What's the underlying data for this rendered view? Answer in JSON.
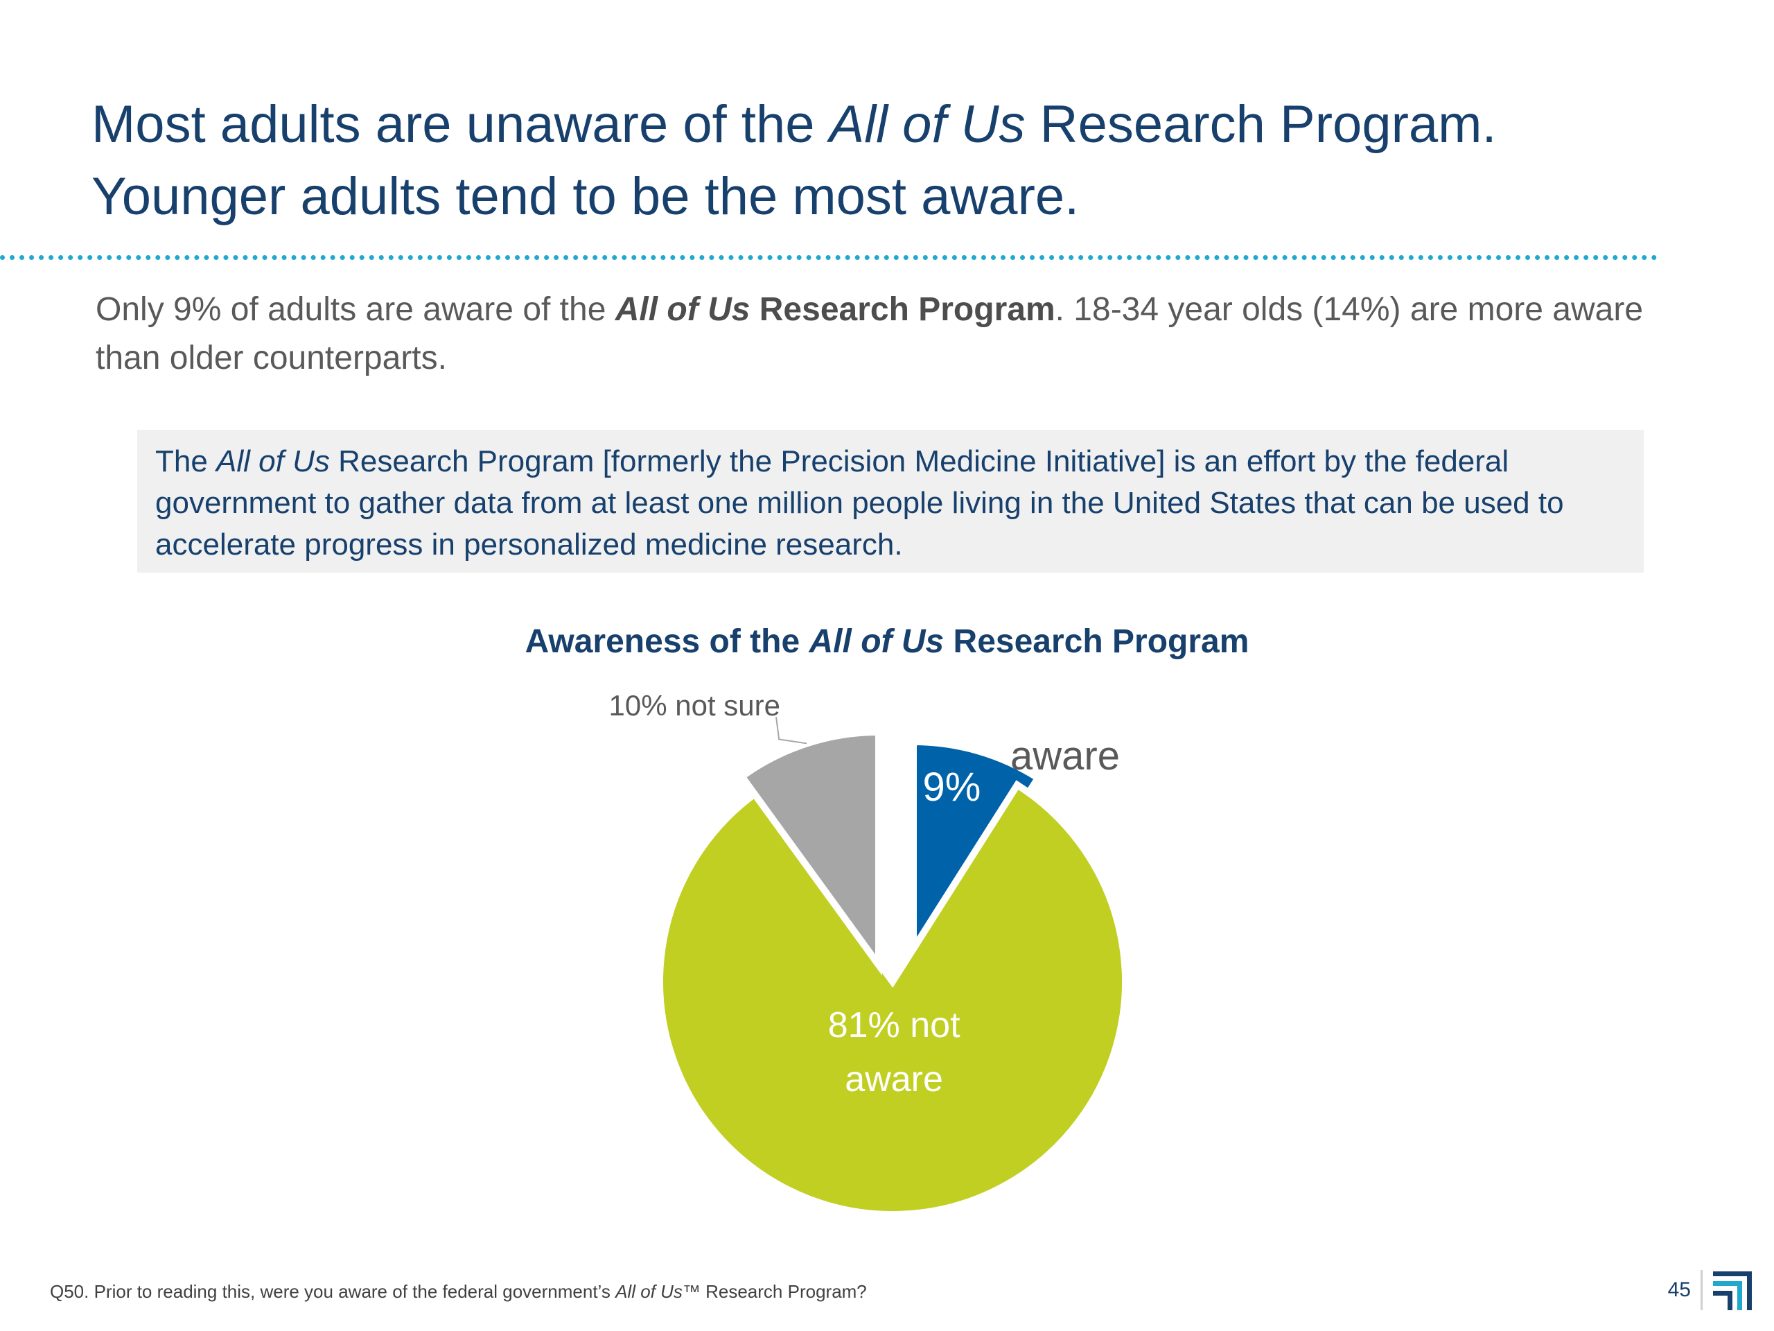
{
  "title": {
    "line1_a": "Most adults are unaware of the ",
    "line1_em": "All of Us",
    "line1_b": " Research Program.",
    "line2": "Younger adults tend to be the most aware."
  },
  "summary": {
    "a": "Only 9% of adults are aware of the ",
    "em": "All of Us",
    "b": " Research Program",
    "c": ". 18-34 year olds (14%) are more aware than older counterparts."
  },
  "definition": {
    "a": "The ",
    "em": "All of Us",
    "b": " Research Program [formerly the Precision Medicine Initiative] is an effort by the federal government to gather data from at least one million people living in the United States that can be used to accelerate progress in personalized medicine research."
  },
  "chart_data": {
    "type": "pie",
    "title_a": "Awareness of the ",
    "title_em": "All of Us",
    "title_b": " Research Program",
    "slices": [
      {
        "label_value": "9%",
        "label_text": "aware",
        "value": 9,
        "color": "#0063aa"
      },
      {
        "label_value": "81%",
        "label_text": "not aware",
        "value": 81,
        "color": "#c0cf22"
      },
      {
        "label_value": "10%",
        "label_text": "not sure",
        "value": 10,
        "color": "#a6a6a6"
      }
    ]
  },
  "footer": {
    "note_a": "Q50. Prior to reading this, were you aware of the federal government’s ",
    "note_em": "All of Us™",
    "note_b": " Research Program?",
    "page_number": "45"
  }
}
